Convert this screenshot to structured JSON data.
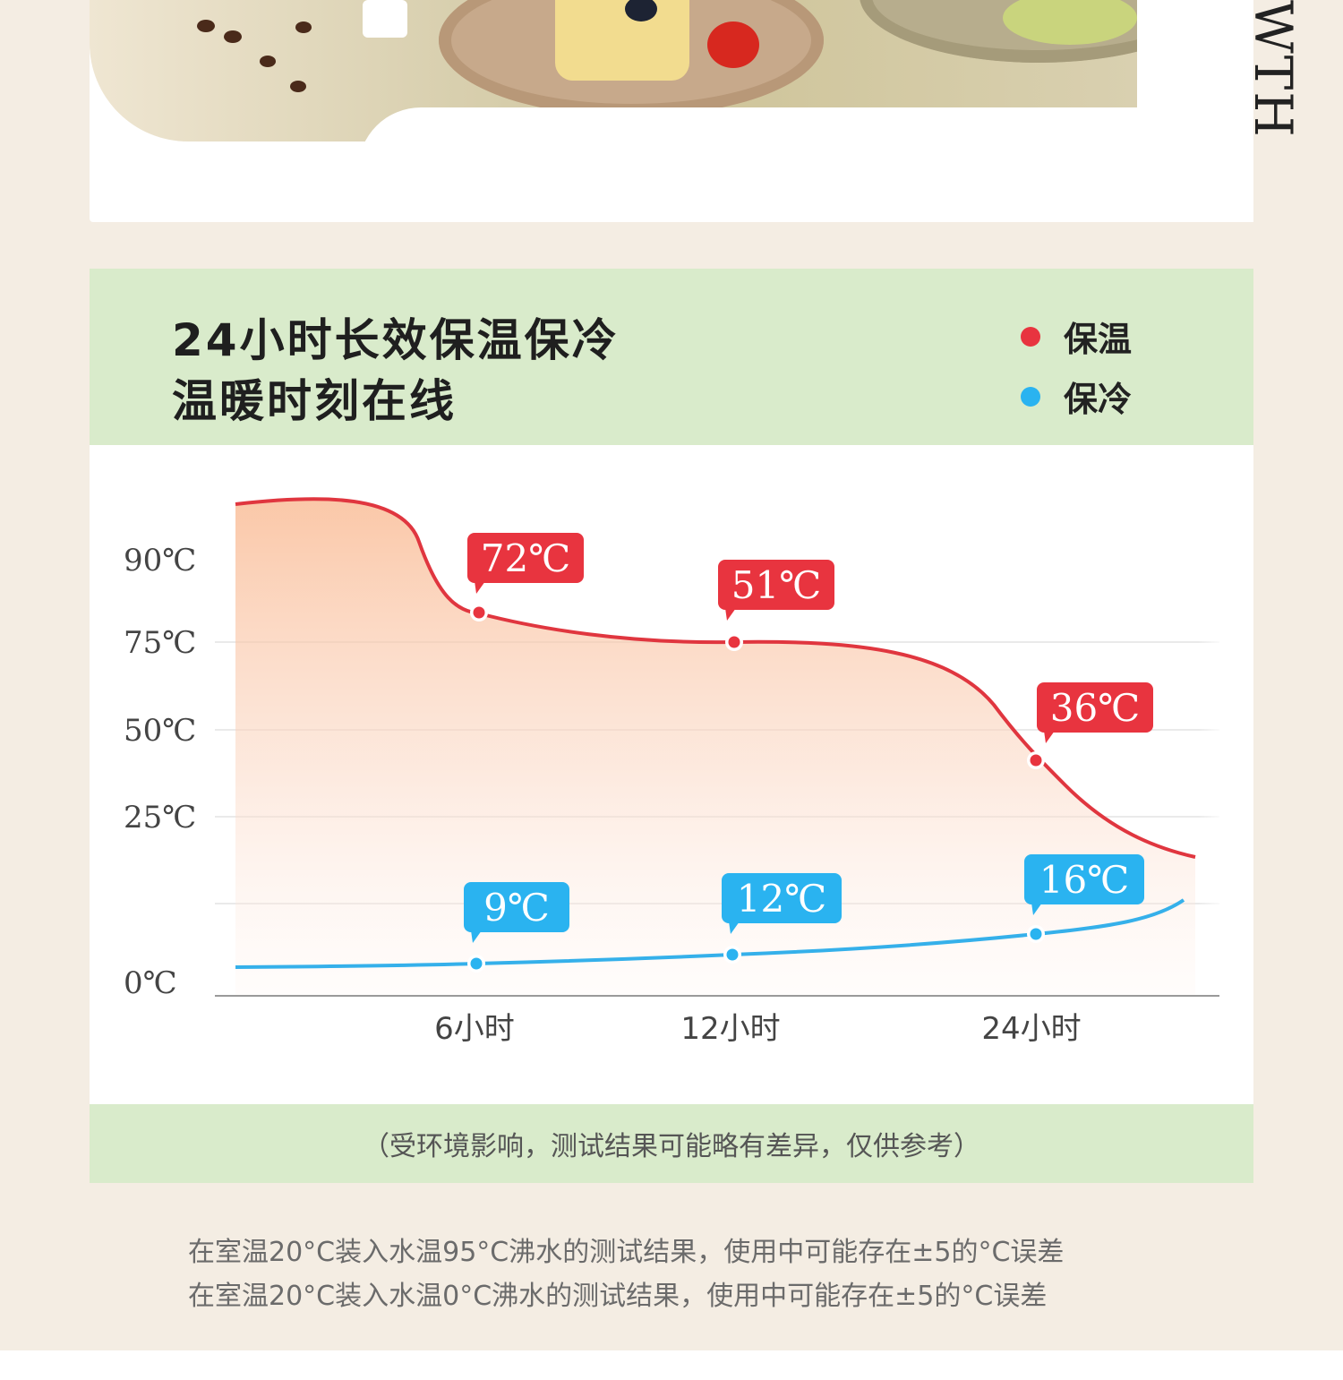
{
  "hero": {
    "vertical_text": "WTH"
  },
  "header": {
    "title_line1": "24小时长效保温保冷",
    "title_line2": "温暖时刻在线"
  },
  "legend": [
    {
      "label": "保温",
      "color": "#e8343f"
    },
    {
      "label": "保冷",
      "color": "#2ab3f0"
    }
  ],
  "chart_data": {
    "type": "line",
    "yticks": [
      "90℃",
      "75℃",
      "50℃",
      "25℃",
      "0℃"
    ],
    "xticks": [
      "6小时",
      "12小时",
      "24小时"
    ],
    "grid": true,
    "series": [
      {
        "name": "保温",
        "color": "#e8343f",
        "points": [
          {
            "x": "6小时",
            "label": "72℃"
          },
          {
            "x": "12小时",
            "label": "51℃"
          },
          {
            "x": "24小时",
            "label": "36℃"
          }
        ]
      },
      {
        "name": "保冷",
        "color": "#2ab3f0",
        "points": [
          {
            "x": "6小时",
            "label": "9℃"
          },
          {
            "x": "12小时",
            "label": "12℃"
          },
          {
            "x": "24小时",
            "label": "16℃"
          }
        ]
      }
    ]
  },
  "note": "（受环境影响，测试结果可能略有差异，仅供参考）",
  "footnotes": [
    "在室温20°C装入水温95°C沸水的测试结果，使用中可能存在±5的°C误差",
    "在室温20°C装入水温0°C沸水的测试结果，使用中可能存在±5的°C误差"
  ]
}
